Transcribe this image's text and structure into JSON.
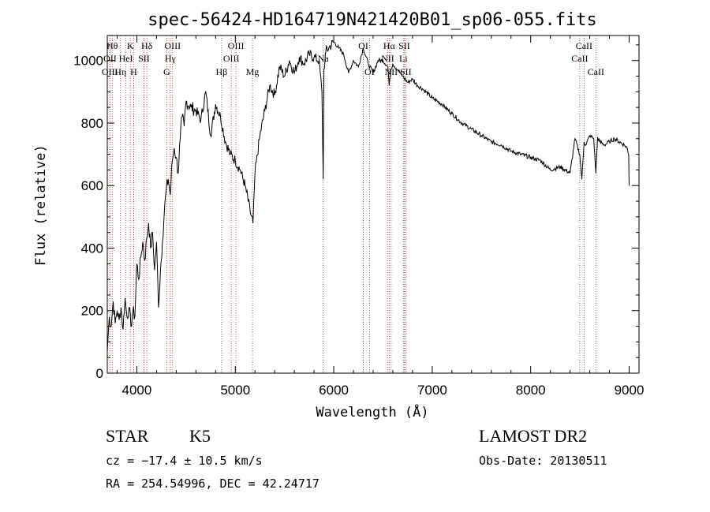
{
  "chart_data": {
    "type": "line",
    "title": "spec-56424-HD164719N421420B01_sp06-055.fits",
    "xlabel": "Wavelength (Å)",
    "ylabel": "Flux (relative)",
    "xlim": [
      3700,
      9100
    ],
    "ylim": [
      0,
      1080
    ],
    "x_ticks": [
      4000,
      5000,
      6000,
      7000,
      8000,
      9000
    ],
    "y_ticks": [
      0,
      200,
      400,
      600,
      800,
      1000
    ],
    "grid": false,
    "series": [
      {
        "x": [
          3700,
          3720,
          3740,
          3760,
          3780,
          3800,
          3820,
          3840,
          3860,
          3880,
          3900,
          3920,
          3940,
          3960,
          3980,
          4000,
          4020,
          4040,
          4060,
          4080,
          4100,
          4120,
          4140,
          4160,
          4180,
          4200,
          4220,
          4240,
          4260,
          4280,
          4300,
          4320,
          4340,
          4360,
          4380,
          4400,
          4420,
          4440,
          4460,
          4480,
          4500,
          4550,
          4600,
          4650,
          4700,
          4750,
          4800,
          4850,
          4900,
          4950,
          5000,
          5050,
          5100,
          5150,
          5180,
          5200,
          5250,
          5300,
          5350,
          5400,
          5450,
          5500,
          5550,
          5600,
          5650,
          5700,
          5750,
          5800,
          5850,
          5880,
          5893,
          5900,
          5920,
          5950,
          6000,
          6050,
          6100,
          6150,
          6200,
          6250,
          6300,
          6350,
          6400,
          6450,
          6500,
          6550,
          6563,
          6580,
          6600,
          6650,
          6700,
          6750,
          6800,
          6850,
          6900,
          7000,
          7100,
          7200,
          7300,
          7400,
          7500,
          7600,
          7700,
          7800,
          7900,
          8000,
          8100,
          8200,
          8300,
          8400,
          8450,
          8498,
          8520,
          8542,
          8560,
          8600,
          8640,
          8662,
          8680,
          8700,
          8750,
          8800,
          8850,
          8900,
          8950,
          8980,
          8995,
          9000
        ],
        "y": [
          70,
          180,
          150,
          230,
          160,
          200,
          170,
          210,
          140,
          240,
          180,
          210,
          150,
          200,
          180,
          350,
          300,
          370,
          420,
          360,
          430,
          480,
          400,
          450,
          330,
          420,
          210,
          330,
          420,
          520,
          590,
          620,
          570,
          680,
          720,
          690,
          640,
          750,
          820,
          790,
          870,
          850,
          840,
          810,
          900,
          760,
          860,
          820,
          740,
          700,
          680,
          650,
          600,
          520,
          480,
          640,
          760,
          840,
          920,
          890,
          980,
          950,
          1000,
          960,
          1010,
          990,
          1020,
          1010,
          1000,
          900,
          620,
          970,
          1030,
          1040,
          1060,
          1040,
          1020,
          960,
          1000,
          980,
          1040,
          990,
          960,
          1000,
          1000,
          980,
          920,
          970,
          990,
          970,
          950,
          930,
          940,
          920,
          910,
          880,
          860,
          830,
          800,
          780,
          760,
          740,
          730,
          710,
          700,
          690,
          680,
          650,
          660,
          640,
          750,
          700,
          620,
          740,
          730,
          760,
          750,
          640,
          755,
          740,
          730,
          740,
          750,
          740,
          730,
          720,
          700,
          600
        ]
      }
    ],
    "spectral_lines": [
      {
        "wl": 3750,
        "label": "Hθ",
        "row": 1
      },
      {
        "wl": 3727,
        "label": "OII",
        "row": 2
      },
      {
        "wl": 3726,
        "label": "OIII",
        "row": 3
      },
      {
        "wl": 3834,
        "label": "Hη",
        "row": 3
      },
      {
        "wl": 3934,
        "label": "K",
        "row": 1
      },
      {
        "wl": 3889,
        "label": "HeI",
        "row": 2
      },
      {
        "wl": 3968,
        "label": "H",
        "row": 3
      },
      {
        "wl": 4072,
        "label": "SII",
        "row": 2
      },
      {
        "wl": 4102,
        "label": "Hδ",
        "row": 1
      },
      {
        "wl": 4340,
        "label": "Hγ",
        "row": 2
      },
      {
        "wl": 4363,
        "label": "OIII",
        "row": 1
      },
      {
        "wl": 4304,
        "label": "G",
        "row": 3
      },
      {
        "wl": 4861,
        "label": "Hβ",
        "row": 3
      },
      {
        "wl": 5007,
        "label": "OIII",
        "row": 1
      },
      {
        "wl": 4959,
        "label": "OIII",
        "row": 2
      },
      {
        "wl": 5175,
        "label": "Mg",
        "row": 3
      },
      {
        "wl": 5893,
        "label": "Na",
        "row": 2
      },
      {
        "wl": 6300,
        "label": "OI",
        "row": 1
      },
      {
        "wl": 6363,
        "label": "OI",
        "row": 3
      },
      {
        "wl": 6563,
        "label": "Hα",
        "row": 1
      },
      {
        "wl": 6548,
        "label": "NII",
        "row": 2
      },
      {
        "wl": 6583,
        "label": "NII",
        "row": 3
      },
      {
        "wl": 6716,
        "label": "SII",
        "row": 1
      },
      {
        "wl": 6707,
        "label": "Li",
        "row": 2
      },
      {
        "wl": 6731,
        "label": "SII",
        "row": 3
      },
      {
        "wl": 8498,
        "label": "CaII",
        "row": 2
      },
      {
        "wl": 8542,
        "label": "CaII",
        "row": 1
      },
      {
        "wl": 8662,
        "label": "CaII",
        "row": 3
      }
    ]
  },
  "info": {
    "class_label": "STAR",
    "subclass": "K5",
    "survey": "LAMOST DR2",
    "cz": "cz = −17.4 ± 10.5 km/s",
    "obs_date": "Obs-Date: 20130511",
    "coords": "RA = 254.54996, DEC =  42.24717"
  }
}
